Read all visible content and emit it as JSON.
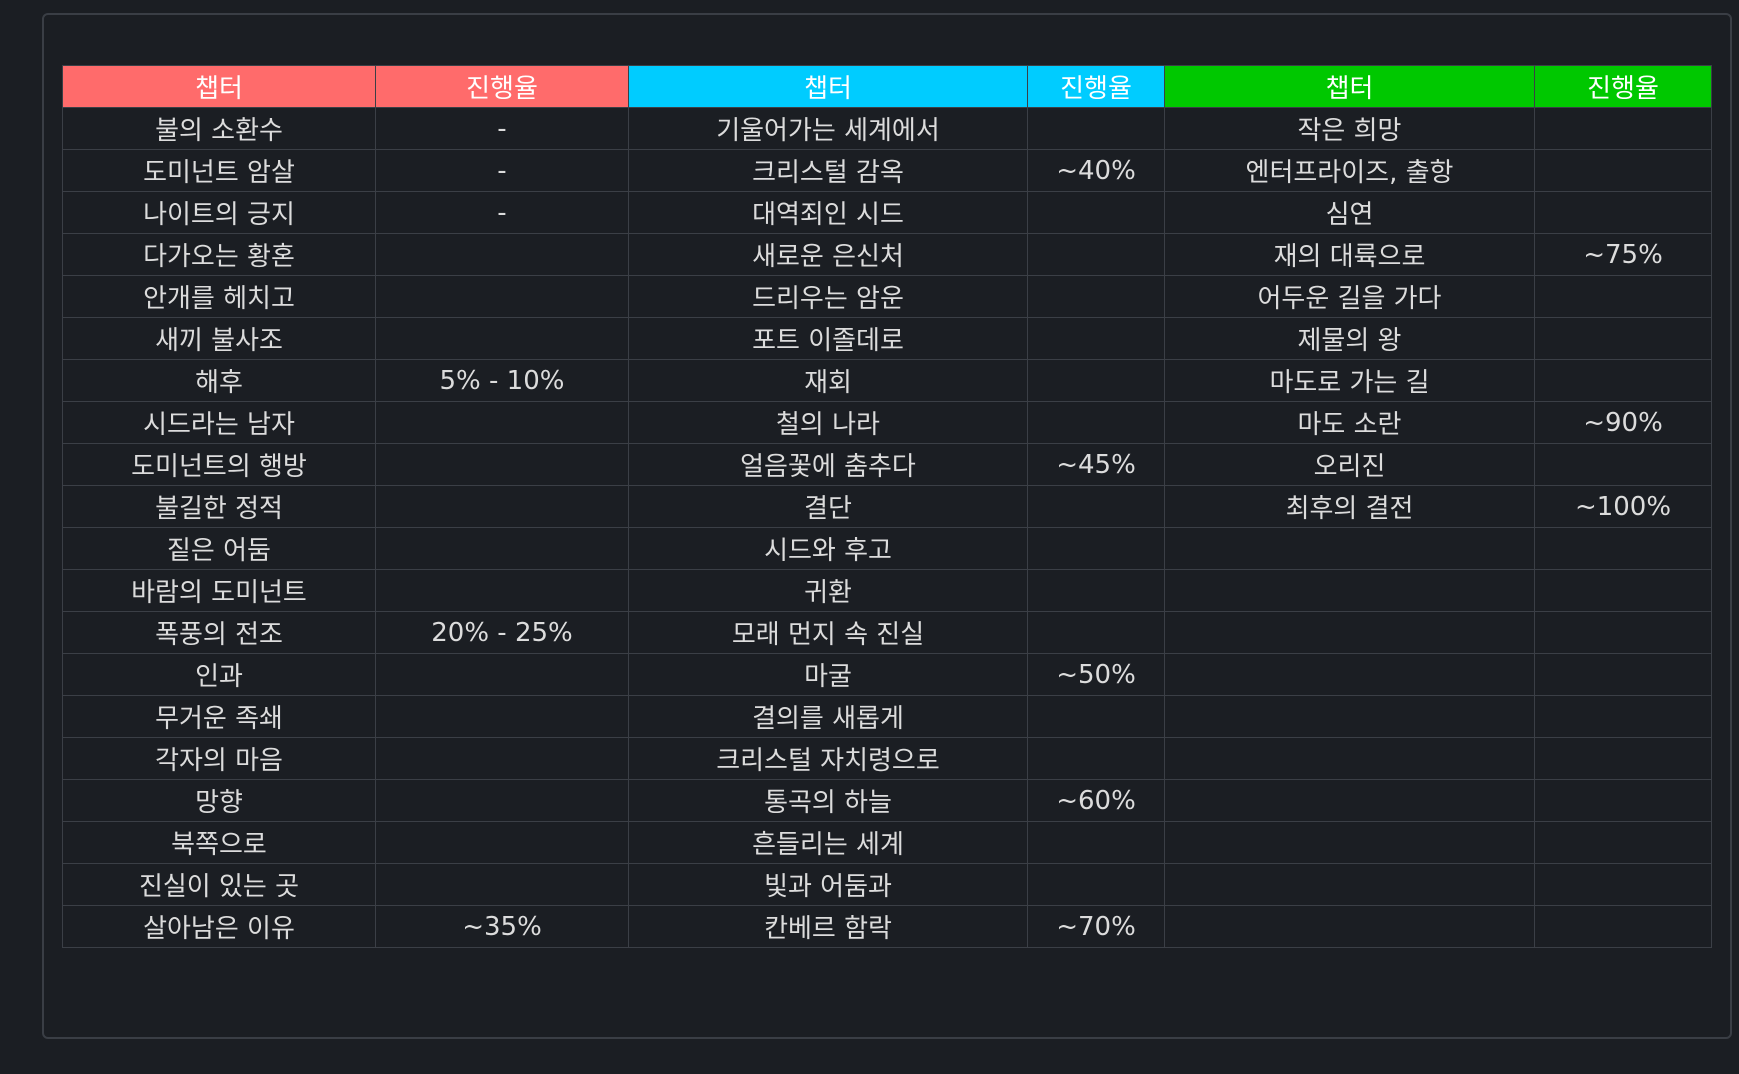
{
  "colors": {
    "group1": "#ff6b6b",
    "group2": "#00ccff",
    "group3": "#00c800",
    "background": "#1b1e23",
    "border": "#3b3f46"
  },
  "headers": [
    {
      "chapter": "챕터",
      "progress": "진행율"
    },
    {
      "chapter": "챕터",
      "progress": "진행율"
    },
    {
      "chapter": "챕터",
      "progress": "진행율"
    }
  ],
  "rows": [
    {
      "cells": [
        {
          "chapter": "불의 소환수",
          "progress": "-"
        },
        {
          "chapter": "기울어가는 세계에서",
          "progress": ""
        },
        {
          "chapter": "작은 희망",
          "progress": ""
        }
      ]
    },
    {
      "cells": [
        {
          "chapter": "도미넌트 암살",
          "progress": "-"
        },
        {
          "chapter": "크리스털 감옥",
          "progress": "~40%"
        },
        {
          "chapter": "엔터프라이즈, 출항",
          "progress": ""
        }
      ]
    },
    {
      "cells": [
        {
          "chapter": "나이트의 긍지",
          "progress": "-"
        },
        {
          "chapter": "대역죄인 시드",
          "progress": ""
        },
        {
          "chapter": "심연",
          "progress": ""
        }
      ]
    },
    {
      "cells": [
        {
          "chapter": "다가오는 황혼",
          "progress": ""
        },
        {
          "chapter": "새로운 은신처",
          "progress": ""
        },
        {
          "chapter": "재의 대륙으로",
          "progress": "~75%"
        }
      ]
    },
    {
      "cells": [
        {
          "chapter": "안개를 헤치고",
          "progress": ""
        },
        {
          "chapter": "드리우는 암운",
          "progress": ""
        },
        {
          "chapter": "어두운 길을 가다",
          "progress": ""
        }
      ]
    },
    {
      "cells": [
        {
          "chapter": "새끼 불사조",
          "progress": ""
        },
        {
          "chapter": "포트 이졸데로",
          "progress": ""
        },
        {
          "chapter": "제물의 왕",
          "progress": ""
        }
      ]
    },
    {
      "cells": [
        {
          "chapter": "해후",
          "progress": "5% - 10%"
        },
        {
          "chapter": "재회",
          "progress": ""
        },
        {
          "chapter": "마도로 가는 길",
          "progress": ""
        }
      ]
    },
    {
      "cells": [
        {
          "chapter": "시드라는 남자",
          "progress": ""
        },
        {
          "chapter": "철의 나라",
          "progress": ""
        },
        {
          "chapter": "마도 소란",
          "progress": "~90%"
        }
      ]
    },
    {
      "cells": [
        {
          "chapter": "도미넌트의 행방",
          "progress": ""
        },
        {
          "chapter": "얼음꽃에 춤추다",
          "progress": "~45%"
        },
        {
          "chapter": "오리진",
          "progress": ""
        }
      ]
    },
    {
      "cells": [
        {
          "chapter": "불길한 정적",
          "progress": ""
        },
        {
          "chapter": "결단",
          "progress": ""
        },
        {
          "chapter": "최후의 결전",
          "progress": "~100%"
        }
      ]
    },
    {
      "cells": [
        {
          "chapter": "짙은 어둠",
          "progress": ""
        },
        {
          "chapter": "시드와 후고",
          "progress": ""
        },
        {
          "chapter": "",
          "progress": ""
        }
      ]
    },
    {
      "cells": [
        {
          "chapter": "바람의 도미넌트",
          "progress": ""
        },
        {
          "chapter": "귀환",
          "progress": ""
        },
        {
          "chapter": "",
          "progress": ""
        }
      ]
    },
    {
      "cells": [
        {
          "chapter": "폭풍의 전조",
          "progress": "20% - 25%"
        },
        {
          "chapter": "모래 먼지 속 진실",
          "progress": ""
        },
        {
          "chapter": "",
          "progress": ""
        }
      ]
    },
    {
      "cells": [
        {
          "chapter": "인과",
          "progress": ""
        },
        {
          "chapter": "마굴",
          "progress": "~50%"
        },
        {
          "chapter": "",
          "progress": ""
        }
      ]
    },
    {
      "cells": [
        {
          "chapter": "무거운 족쇄",
          "progress": ""
        },
        {
          "chapter": "결의를 새롭게",
          "progress": ""
        },
        {
          "chapter": "",
          "progress": ""
        }
      ]
    },
    {
      "cells": [
        {
          "chapter": "각자의 마음",
          "progress": ""
        },
        {
          "chapter": "크리스털 자치령으로",
          "progress": ""
        },
        {
          "chapter": "",
          "progress": ""
        }
      ]
    },
    {
      "cells": [
        {
          "chapter": "망향",
          "progress": ""
        },
        {
          "chapter": "통곡의 하늘",
          "progress": "~60%"
        },
        {
          "chapter": "",
          "progress": ""
        }
      ]
    },
    {
      "cells": [
        {
          "chapter": "북쪽으로",
          "progress": ""
        },
        {
          "chapter": "흔들리는 세계",
          "progress": ""
        },
        {
          "chapter": "",
          "progress": ""
        }
      ]
    },
    {
      "cells": [
        {
          "chapter": "진실이 있는 곳",
          "progress": ""
        },
        {
          "chapter": "빛과 어둠과",
          "progress": ""
        },
        {
          "chapter": "",
          "progress": ""
        }
      ]
    },
    {
      "cells": [
        {
          "chapter": "살아남은 이유",
          "progress": "~35%"
        },
        {
          "chapter": "칸베르 함락",
          "progress": "~70%"
        },
        {
          "chapter": "",
          "progress": ""
        }
      ]
    }
  ]
}
